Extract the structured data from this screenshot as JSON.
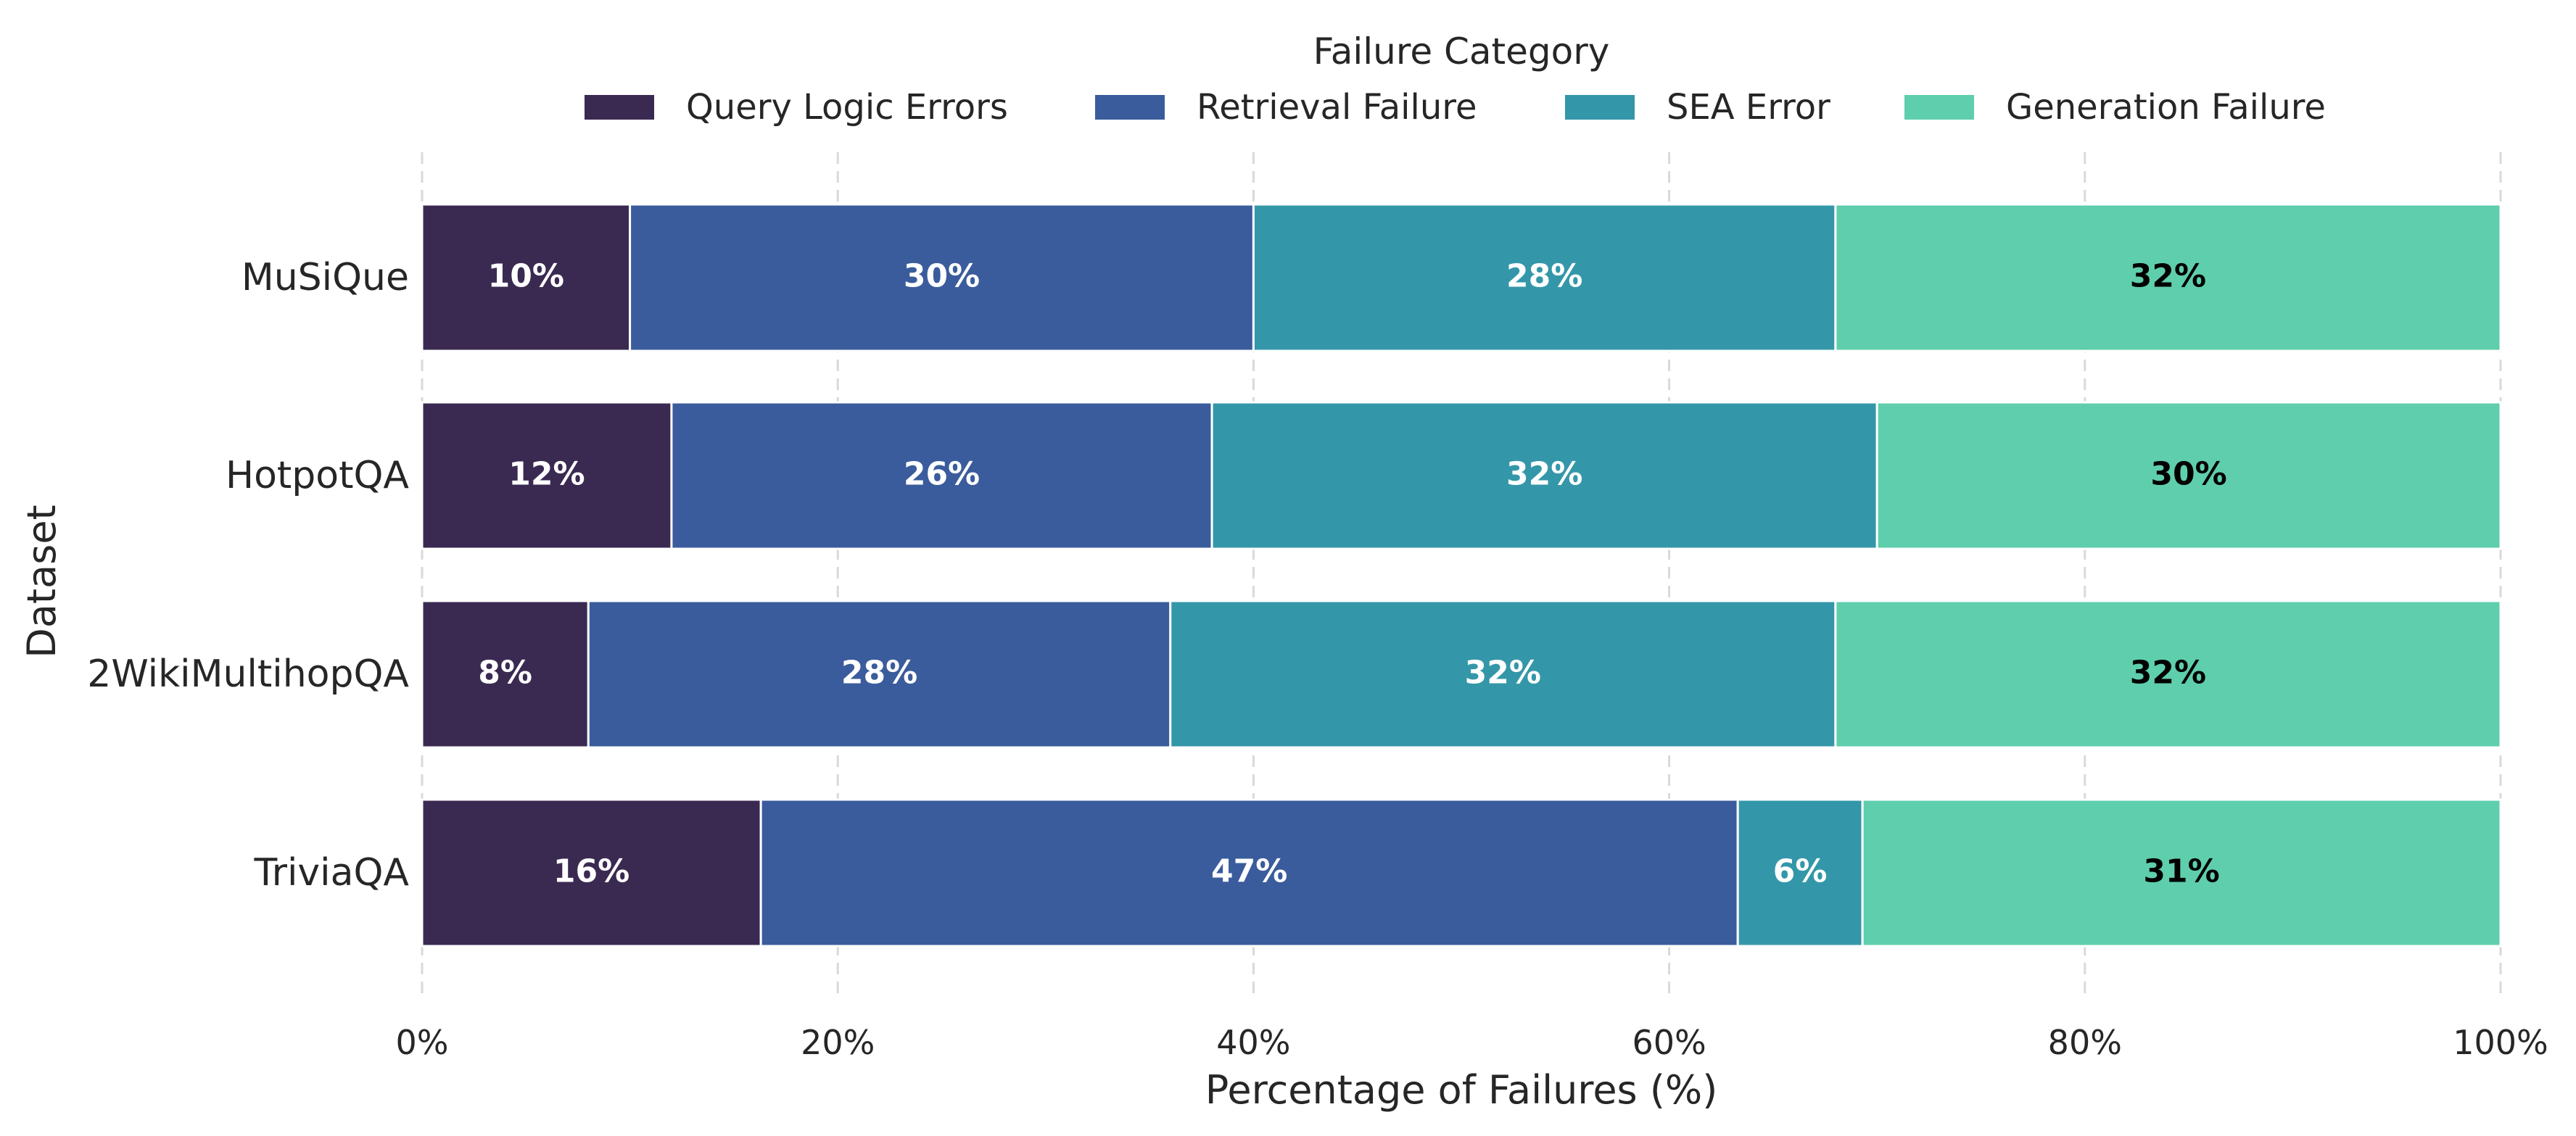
{
  "chart_data": {
    "type": "bar",
    "orientation": "horizontal",
    "stacked": true,
    "categories": [
      "MuSiQue",
      "HotpotQA",
      "2WikiMultihopQA",
      "TriviaQA"
    ],
    "series": [
      {
        "name": "Query Logic Errors",
        "color": "#3a2a52",
        "label_color": "#ffffff",
        "values": [
          10,
          12,
          8,
          16.3
        ]
      },
      {
        "name": "Retrieval Failure",
        "color": "#3a5c9c",
        "label_color": "#ffffff",
        "values": [
          30,
          26,
          28,
          47
        ]
      },
      {
        "name": "SEA Error",
        "color": "#3497a9",
        "label_color": "#ffffff",
        "values": [
          28,
          32,
          32,
          6
        ]
      },
      {
        "name": "Generation Failure",
        "color": "#5fceac",
        "label_color": "#000000",
        "values": [
          32,
          30,
          32,
          30.7
        ]
      }
    ],
    "data_labels": [
      [
        "10%",
        "30%",
        "28%",
        "32%"
      ],
      [
        "12%",
        "26%",
        "32%",
        "30%"
      ],
      [
        "8%",
        "28%",
        "32%",
        "32%"
      ],
      [
        "16%",
        "47%",
        "6%",
        "31%"
      ]
    ],
    "xlim": [
      0,
      100
    ],
    "x_ticks": [
      0,
      20,
      40,
      60,
      80,
      100
    ],
    "x_tick_labels": [
      "0%",
      "20%",
      "40%",
      "60%",
      "80%",
      "100%"
    ],
    "xlabel": "Percentage of Failures (%)",
    "ylabel": "Dataset",
    "legend_title": "Failure Category",
    "legend_position": "top-center",
    "grid": "vertical dashed"
  }
}
